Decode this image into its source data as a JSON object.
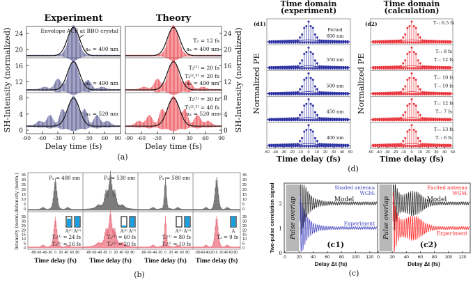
{
  "panel_labels": {
    "a": "(a)",
    "b": "(b)",
    "c": "(c)",
    "d": "(d)",
    "d1": "(d1)",
    "d2": "(d2)",
    "c1": "(c1)",
    "c2": "(c2)"
  },
  "colors": {
    "experiment_a": "#4a4a8a",
    "theory": "#e8343c",
    "d1": "#2b2fa0",
    "d2": "#e8343c",
    "b_top": "#6e6e6e",
    "b_bottom": "#f08a96",
    "model": "#222222",
    "c1_exp": "#4040c0",
    "c2_exp": "#ff2020",
    "overlap": "#b8b8b8",
    "bar_fill": "#1aa0e0"
  },
  "chart_data": [
    {
      "id": "a_experiment",
      "type": "line",
      "title": "Experiment",
      "xlabel": "Delay time (fs)",
      "ylabel": "SH-Intensity (normalized)",
      "xlim": [
        -90,
        90
      ],
      "ylim": [
        0,
        26
      ],
      "xticks": [
        "-90",
        "-60",
        "-30",
        "0",
        "30",
        "60",
        "90"
      ],
      "yticks": [
        "0",
        "4",
        "8",
        "12",
        "16",
        "20",
        "24"
      ],
      "annotation": "Envelope ACF at BBO crystal",
      "series": [
        {
          "label": "aₓ = 400 nm",
          "baseline": 18.5,
          "peak": 25.5
        },
        {
          "label": "aₓ = 490 nm",
          "baseline": 10,
          "peak": 17
        },
        {
          "label": "aₓ = 520 nm",
          "baseline": 1,
          "peak": 8
        }
      ]
    },
    {
      "id": "a_theory",
      "type": "line",
      "title": "Theory",
      "xlabel": "Delay time (fs)",
      "ylabel": "SH-Intensity (normalized)",
      "xlim": [
        -90,
        90
      ],
      "ylim": [
        0,
        26
      ],
      "xticks": [
        "-90",
        "-60",
        "-30",
        "0",
        "30",
        "60",
        "90"
      ],
      "yticks": [
        "0",
        "4",
        "8",
        "12",
        "16",
        "20",
        "24"
      ],
      "series": [
        {
          "labels": [
            "T₂ = 12 fs",
            "aₓ = 400 nm"
          ],
          "baseline": 18.5,
          "peak": 25.5
        },
        {
          "labels": [
            "T₂⁽¹⁾ = 20 fs",
            "T₂⁽²,³⁾ = 20 fs",
            "aₓ = 490 nm"
          ],
          "baseline": 10,
          "peak": 17
        },
        {
          "labels": [
            "T₂⁽¹⁾ = 30 fs",
            "T₂⁽²,³⁾ = 48 fs",
            "aₓ = 520 nm"
          ],
          "baseline": 1,
          "peak": 8
        }
      ]
    },
    {
      "id": "d1",
      "type": "line",
      "title": [
        "Time domain",
        "(experiment)"
      ],
      "xlabel": "Time delay (fs)",
      "ylabel": "Normalized PE",
      "xlim": [
        -50,
        50
      ],
      "xticks": [
        "-50",
        "-40",
        "-30",
        "-20",
        "-10",
        "0",
        "10",
        "20",
        "30",
        "40",
        "50"
      ],
      "series": [
        {
          "labels": [
            "Period",
            "600 nm"
          ]
        },
        {
          "labels": [
            "550 nm"
          ]
        },
        {
          "labels": [
            "500 nm"
          ]
        },
        {
          "labels": [
            "450 nm"
          ]
        },
        {
          "labels": [
            "400 nm"
          ]
        }
      ]
    },
    {
      "id": "d2",
      "type": "line",
      "title": [
        "Time domain",
        "(calculation)"
      ],
      "xlabel": "Time delay (fs)",
      "ylabel": "Normalized PE",
      "xlim": [
        -50,
        50
      ],
      "xticks": [
        "-50",
        "-40",
        "-30",
        "-20",
        "-10",
        "0",
        "10",
        "20",
        "30",
        "40",
        "50"
      ],
      "series": [
        {
          "labels": [
            "T₊: 6.5 fs"
          ]
        },
        {
          "labels": [
            "T₊: 8 fs",
            "T₋: 12 fs"
          ]
        },
        {
          "labels": [
            "T₊: 10 fs",
            "T₋: 10 fs"
          ]
        },
        {
          "labels": [
            "T₊: 12 fs",
            "T₋: 7 fs"
          ]
        },
        {
          "labels": [
            "T₊: 13 fs",
            "T₋: 6 fs"
          ]
        }
      ]
    },
    {
      "id": "b",
      "type": "area",
      "xlabel": "Time delay (fs)",
      "ylabel_top": "Intensity (norm.)",
      "ylabel_bottom": "Intensity (norm.)",
      "xlim": [
        -100,
        100
      ],
      "ylim": [
        0,
        35
      ],
      "xticks": [
        "-80",
        "-60",
        "-40",
        "-20",
        "0",
        "20",
        "40",
        "60",
        "80"
      ],
      "yticks": [
        "0",
        "5",
        "10",
        "15",
        "20",
        "25",
        "30",
        "35"
      ],
      "columns": [
        {
          "top_label": "Pₓ = 480 nm",
          "bottom_labels": [
            "A⁽¹⁾",
            "A⁽²⁾",
            "T₂⁽¹⁾ = 24 fs",
            "T₂⁽²⁾ = 16 fs"
          ],
          "bars": [
            0.8,
            1.0
          ],
          "peak": 30,
          "width": 6,
          "side": 3
        },
        {
          "top_label": "Pₓ = 530 nm",
          "bottom_labels": [
            "A⁽¹⁾",
            "A⁽²⁾",
            "T₂⁽¹⁾ = 60 fs",
            "T₂⁽²⁾ = 20 fs"
          ],
          "bars": [
            0.15,
            0.95
          ],
          "peak": 30,
          "width": 5,
          "side": 14
        },
        {
          "top_label": "Pₓ = 580 nm",
          "bottom_labels": [
            "A⁽¹⁾",
            "A⁽²⁾",
            "T₂⁽¹⁾ = 80 fs",
            "T₂⁽²⁾ = 10 fs"
          ],
          "bars": [
            0.0,
            1.0
          ],
          "peak": 31,
          "width": 4,
          "side": 3
        },
        {
          "top_label": "",
          "bottom_labels": [
            "A",
            "",
            "T₂ = 9 fs",
            ""
          ],
          "bars": [
            1.0
          ],
          "peak": 31,
          "width": 7,
          "side": 2
        }
      ]
    },
    {
      "id": "c1",
      "type": "line",
      "xlabel": "Delay Δt (fs)",
      "ylabel": "Two-pulse correlation signal",
      "xlim": [
        0,
        130
      ],
      "ylim": [
        0,
        2.8
      ],
      "xticks": [
        "0",
        "20",
        "40",
        "60",
        "80",
        "100",
        "120"
      ],
      "yticks": [
        "0",
        "1",
        "2"
      ],
      "overlap_label": "Pulse overlap",
      "overlap_range": [
        0,
        20
      ],
      "legend": [
        "Shaded antenna",
        "WGMᵢ"
      ],
      "series": [
        {
          "name": "Model",
          "baseline": 2
        },
        {
          "name": "Experiment",
          "baseline": 1
        }
      ]
    },
    {
      "id": "c2",
      "type": "line",
      "xlabel": "Delay Δt (fs)",
      "ylabel": "Two-pulse correlation signal",
      "xlim": [
        0,
        130
      ],
      "ylim": [
        0,
        2.8
      ],
      "xticks": [
        "0",
        "20",
        "40",
        "60",
        "80",
        "100",
        "120"
      ],
      "yticks": [
        "0",
        "1",
        "2"
      ],
      "overlap_label": "Pulse overlap",
      "overlap_range": [
        0,
        20
      ],
      "legend": [
        "Excited antenna",
        "WGMᵢ"
      ],
      "series": [
        {
          "name": "Model",
          "baseline": 2
        },
        {
          "name": "Experiment",
          "baseline": 1
        }
      ]
    }
  ]
}
